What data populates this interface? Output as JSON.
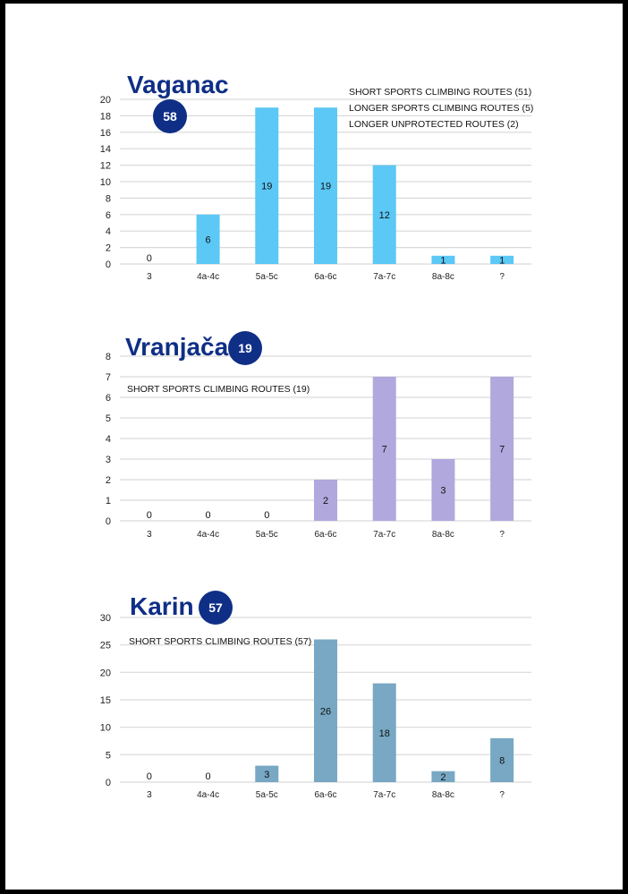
{
  "chart_data": [
    {
      "type": "bar",
      "title": "Vaganac",
      "total_badge": "58",
      "legend": [
        "SHORT SPORTS CLIMBING ROUTES (51)",
        "LONGER SPORTS CLIMBING ROUTES (5)",
        "LONGER UNPROTECTED ROUTES (2)"
      ],
      "categories": [
        "3",
        "4a-4c",
        "5a-5c",
        "6a-6c",
        "7a-7c",
        "8a-8c",
        "?"
      ],
      "values": [
        0,
        6,
        19,
        19,
        12,
        1,
        1
      ],
      "ylim": [
        0,
        20
      ],
      "yticks": [
        "0",
        "2",
        "4",
        "6",
        "8",
        "10",
        "12",
        "14",
        "16",
        "18",
        "20"
      ],
      "bar_color": "#5bc8f5",
      "grid": true
    },
    {
      "type": "bar",
      "title": "Vranjača",
      "total_badge": "19",
      "legend": [
        "SHORT SPORTS CLIMBING ROUTES (19)"
      ],
      "categories": [
        "3",
        "4a-4c",
        "5a-5c",
        "6a-6c",
        "7a-7c",
        "8a-8c",
        "?"
      ],
      "values": [
        0,
        0,
        0,
        2,
        7,
        3,
        7
      ],
      "ylim": [
        0,
        8
      ],
      "yticks": [
        "0",
        "1",
        "2",
        "3",
        "4",
        "5",
        "6",
        "7",
        "8"
      ],
      "bar_color": "#b1a8dd",
      "grid": true
    },
    {
      "type": "bar",
      "title": "Karin",
      "total_badge": "57",
      "legend": [
        "SHORT SPORTS CLIMBING ROUTES (57)"
      ],
      "categories": [
        "3",
        "4a-4c",
        "5a-5c",
        "6a-6c",
        "7a-7c",
        "8a-8c",
        "?"
      ],
      "values": [
        0,
        0,
        3,
        26,
        18,
        2,
        8
      ],
      "ylim": [
        0,
        30
      ],
      "yticks": [
        "0",
        "5",
        "10",
        "15",
        "20",
        "25",
        "30"
      ],
      "bar_color": "#78a8c4",
      "grid": true
    }
  ],
  "colors": {
    "title": "#0f2f86",
    "badge": "#0f2f86"
  }
}
